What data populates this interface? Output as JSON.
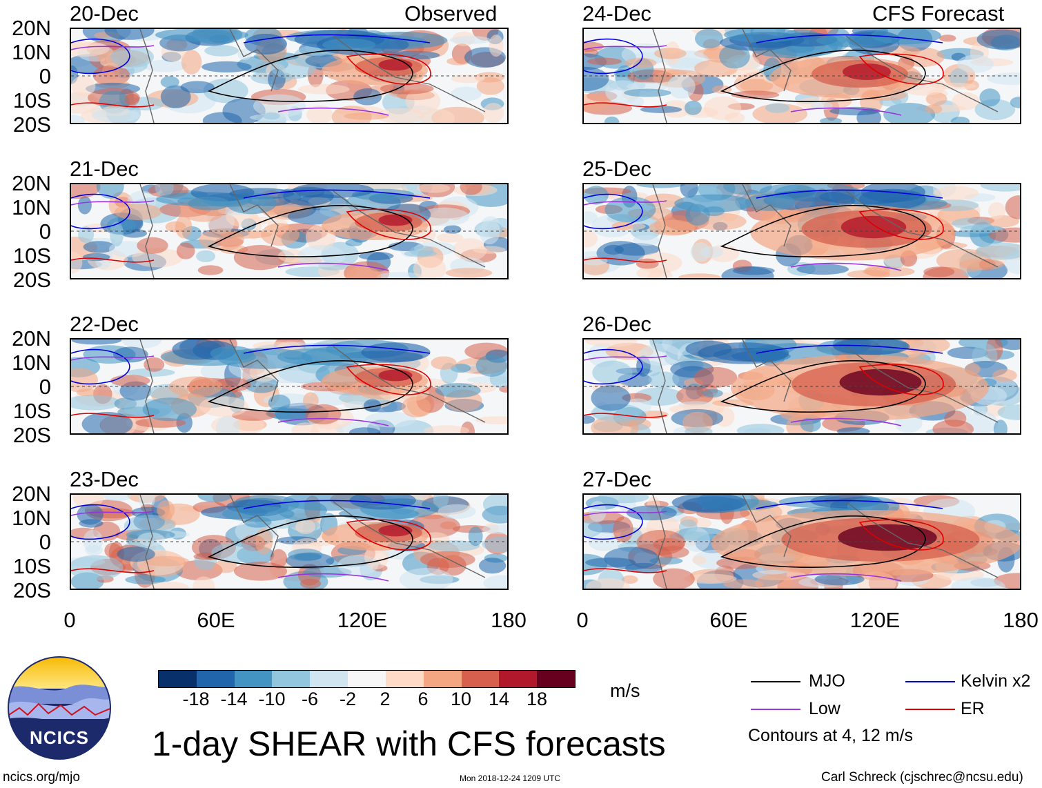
{
  "header": {
    "observed_label": "Observed",
    "forecast_label": "CFS Forecast"
  },
  "axes": {
    "lat_labels": [
      "20N",
      "10N",
      "0",
      "10S",
      "20S"
    ],
    "lon_labels": [
      "0",
      "60E",
      "120E",
      "180"
    ]
  },
  "panels": {
    "left": [
      {
        "date": "20-Dec",
        "type": "observed"
      },
      {
        "date": "21-Dec",
        "type": "observed"
      },
      {
        "date": "22-Dec",
        "type": "observed"
      },
      {
        "date": "23-Dec",
        "type": "observed"
      }
    ],
    "right": [
      {
        "date": "24-Dec",
        "type": "forecast"
      },
      {
        "date": "25-Dec",
        "type": "forecast"
      },
      {
        "date": "26-Dec",
        "type": "forecast"
      },
      {
        "date": "27-Dec",
        "type": "forecast"
      }
    ]
  },
  "colorbar": {
    "units": "m/s",
    "labels": [
      "-18",
      "-14",
      "-10",
      "-6",
      "-2",
      "2",
      "6",
      "10",
      "14",
      "18"
    ],
    "colors": [
      "#08306b",
      "#2166ac",
      "#4393c3",
      "#92c5de",
      "#d1e5f0",
      "#f7f7f7",
      "#fddbc7",
      "#f4a582",
      "#d6604d",
      "#b2182b",
      "#67001f"
    ]
  },
  "legend": {
    "items": [
      {
        "label": "MJO",
        "color": "#000000"
      },
      {
        "label": "Kelvin x2",
        "color": "#0000dd"
      },
      {
        "label": "Low",
        "color": "#9933dd"
      },
      {
        "label": "ER",
        "color": "#dd0000"
      }
    ],
    "contours_note": "Contours at 4, 12 m/s"
  },
  "title": "1-day SHEAR with CFS forecasts",
  "logo": {
    "text": "NCICS"
  },
  "footer": {
    "url": "ncics.org/mjo",
    "timestamp": "Mon 2018-12-24 1209 UTC",
    "author": "Carl Schreck (cjschrec@ncsu.edu)"
  }
}
